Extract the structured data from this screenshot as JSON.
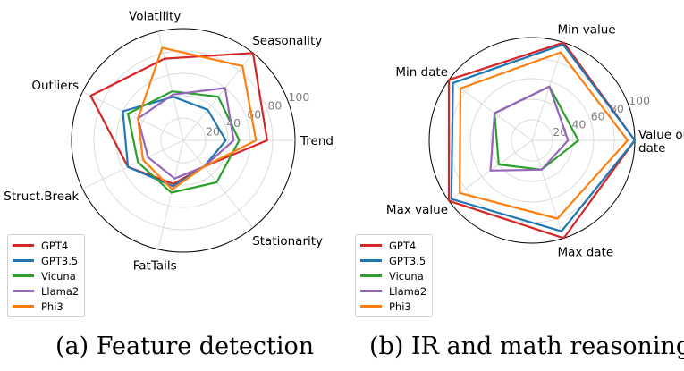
{
  "chart_data": [
    {
      "type": "radar",
      "caption": "(a) Feature detection",
      "axes": [
        "Trend",
        "Seasonality",
        "Volatility",
        "Outliers",
        "Struct.Break",
        "FatTails",
        "Stationarity"
      ],
      "rlim": [
        0,
        100
      ],
      "radial_ticks": [
        "20",
        "40",
        "60",
        "80",
        "100"
      ],
      "legend_position": "lower-left",
      "grid": true,
      "series": [
        {
          "name": "GPT4",
          "color": "#d62728",
          "values": [
            75,
            100,
            75,
            92,
            55,
            40,
            30
          ]
        },
        {
          "name": "GPT3.5",
          "color": "#1f77b4",
          "values": [
            38,
            35,
            40,
            60,
            55,
            42,
            30
          ]
        },
        {
          "name": "Vicuna",
          "color": "#2ca02c",
          "values": [
            50,
            50,
            45,
            55,
            45,
            48,
            48
          ]
        },
        {
          "name": "Llama2",
          "color": "#9467bd",
          "values": [
            45,
            60,
            42,
            45,
            35,
            35,
            30
          ]
        },
        {
          "name": "Phi3",
          "color": "#ff7f0e",
          "values": [
            65,
            85,
            85,
            45,
            40,
            45,
            30
          ]
        }
      ]
    },
    {
      "type": "radar",
      "caption": "(b) IR and math reasoning",
      "axes": [
        "Value on\ndate",
        "Min value",
        "Min date",
        "Max value",
        "Max date"
      ],
      "rlim": [
        0,
        100
      ],
      "radial_ticks": [
        "20",
        "40",
        "60",
        "80",
        "100"
      ],
      "legend_position": "lower-left",
      "grid": true,
      "series": [
        {
          "name": "GPT4",
          "color": "#d62728",
          "values": [
            100,
            100,
            100,
            100,
            100
          ]
        },
        {
          "name": "GPT3.5",
          "color": "#1f77b4",
          "values": [
            100,
            98,
            95,
            97,
            93
          ]
        },
        {
          "name": "Vicuna",
          "color": "#2ca02c",
          "values": [
            45,
            55,
            45,
            40,
            30
          ]
        },
        {
          "name": "Llama2",
          "color": "#9467bd",
          "values": [
            35,
            55,
            45,
            50,
            30
          ]
        },
        {
          "name": "Phi3",
          "color": "#ff7f0e",
          "values": [
            93,
            90,
            86,
            87,
            80
          ]
        }
      ]
    }
  ]
}
